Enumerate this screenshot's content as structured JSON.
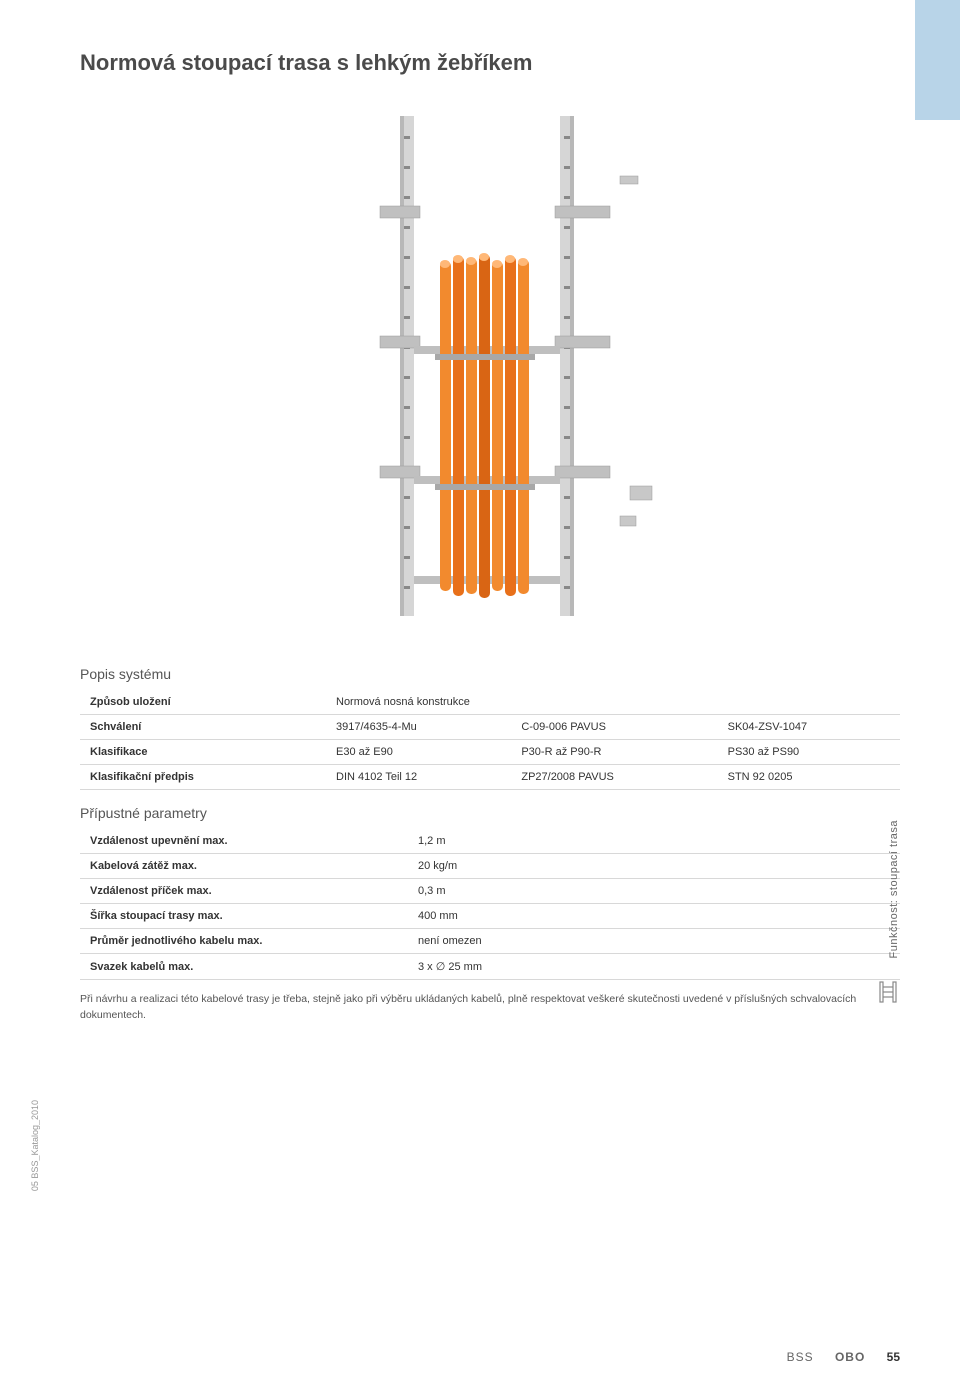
{
  "title": "Normová stoupací trasa s lehkým žebříkem",
  "vertical_label": "Funkčnost: stoupací trasa",
  "doc_id": "05 BSS_Katalog_2010",
  "image": {
    "rail_color": "#c8c8c8",
    "cable_color": "#e8701a",
    "bracket_color": "#b0b0b0",
    "bg": "#ffffff"
  },
  "system": {
    "title": "Popis systému",
    "rows": [
      {
        "label": "Způsob uložení",
        "c1": "Normová nosná konstrukce",
        "c2": "",
        "c3": ""
      },
      {
        "label": "Schválení",
        "c1": "3917/4635-4-Mu",
        "c2": "C-09-006 PAVUS",
        "c3": "SK04-ZSV-1047"
      },
      {
        "label": "Klasifikace",
        "c1": "E30 až E90",
        "c2": "P30-R až P90-R",
        "c3": "PS30 až PS90"
      },
      {
        "label": "Klasifikační předpis",
        "c1": "DIN 4102 Teil 12",
        "c2": "ZP27/2008 PAVUS",
        "c3": "STN 92 0205"
      }
    ]
  },
  "params": {
    "title": "Přípustné parametry",
    "rows": [
      {
        "label": "Vzdálenost upevnění max.",
        "value": "1,2 m"
      },
      {
        "label": "Kabelová zátěž max.",
        "value": "20 kg/m"
      },
      {
        "label": "Vzdálenost příček max.",
        "value": "0,3 m"
      },
      {
        "label": "Šířka stoupací trasy max.",
        "value": "400 mm"
      },
      {
        "label": "Průměr jednotlivého kabelu max.",
        "value": "není omezen"
      },
      {
        "label": "Svazek kabelů max.",
        "value": "3 x ∅ 25 mm"
      }
    ]
  },
  "note": "Při návrhu a realizaci této kabelové trasy je třeba, stejně jako při výběru ukládaných kabelů, plně respektovat veškeré skutečnosti uvedené v příslušných schvalovacích dokumentech.",
  "footer": {
    "brand1": "BSS",
    "brand2": "OBO",
    "page": "55"
  },
  "colors": {
    "heading": "#4a4a4a",
    "text": "#333333",
    "muted": "#666666",
    "border": "#d8d8d8",
    "side_tab": "#b8d4e8"
  }
}
